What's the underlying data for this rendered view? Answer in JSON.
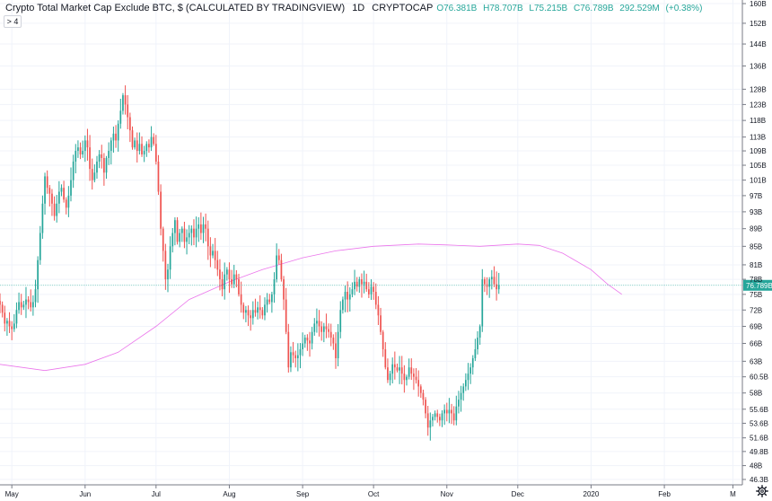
{
  "legend": {
    "title": "Crypto Total Market Cap Exclude BTC, $ (CALCULATED BY TRADINGVIEW)",
    "interval": "1D",
    "source": "CRYPTOCAP",
    "open": "O76.381B",
    "high": "H78.707B",
    "low": "L75.215B",
    "close": "C76.789B",
    "volume": "292.529M",
    "change": "(+0.38%)"
  },
  "collapse_label": "> 4",
  "colors": {
    "up": "#26a69a",
    "down": "#ef5350",
    "ma": "#e85ee8",
    "price_line": "#26a69a",
    "grid": "#f0f3fa",
    "axis_text": "#131722"
  },
  "chart_data": {
    "type": "candlestick",
    "title": "Crypto Total Market Cap Exclude BTC, $ (CALCULATED BY TRADINGVIEW)",
    "xlabel": "",
    "ylabel": "",
    "x_ticks": [
      "May",
      "Jun",
      "Jul",
      "Aug",
      "Sep",
      "Oct",
      "Nov",
      "Dec",
      "2020",
      "Feb",
      "M"
    ],
    "y_ticks": [
      "160B",
      "152B",
      "144B",
      "136B",
      "128B",
      "123B",
      "118B",
      "113B",
      "109B",
      "105B",
      "101B",
      "97B",
      "93B",
      "89B",
      "85B",
      "81B",
      "78B",
      "75B",
      "72B",
      "69B",
      "66B",
      "63B",
      "60.5B",
      "58B",
      "55.6B",
      "53.6B",
      "51.6B",
      "49.8B",
      "48B",
      "46.3B"
    ],
    "y_scale": "log",
    "last_price_label": "76.789B",
    "last_price": 76.789,
    "x_range": [
      "2019-04-26",
      "2020-03-05"
    ],
    "grid": true,
    "series": [
      {
        "kind": "ohlc",
        "start": "2019-04-26",
        "close": [
          73.0,
          71.5,
          69.5,
          70.0,
          69.0,
          68.5,
          69.5,
          72.0,
          73.5,
          72.5,
          73.0,
          74.0,
          73.5,
          72.5,
          73.5,
          76.0,
          82.0,
          88.0,
          95.0,
          102.0,
          99.0,
          97.5,
          95.0,
          92.0,
          95.0,
          98.0,
          99.0,
          96.0,
          94.0,
          97.0,
          101.0,
          106.0,
          109.0,
          110.0,
          108.0,
          109.0,
          112.0,
          110.0,
          104.0,
          101.0,
          103.0,
          106.0,
          108.0,
          107.0,
          103.0,
          107.0,
          109.0,
          112.0,
          114.0,
          112.0,
          117.0,
          121.0,
          126.0,
          123.0,
          119.0,
          115.0,
          110.0,
          112.0,
          109.0,
          111.0,
          108.0,
          109.0,
          111.0,
          110.0,
          113.0,
          111.0,
          106.0,
          98.0,
          89.0,
          84.0,
          78.0,
          80.0,
          85.0,
          88.0,
          91.0,
          86.0,
          88.0,
          89.0,
          86.0,
          87.0,
          88.0,
          89.0,
          87.0,
          89.0,
          90.0,
          88.0,
          90.0,
          89.0,
          85.0,
          83.0,
          84.0,
          82.0,
          80.0,
          78.0,
          76.0,
          79.0,
          80.0,
          78.0,
          77.0,
          79.0,
          78.0,
          75.0,
          73.0,
          71.5,
          72.0,
          71.0,
          70.5,
          72.0,
          71.5,
          72.5,
          72.0,
          71.0,
          73.0,
          74.0,
          73.5,
          75.0,
          78.0,
          83.0,
          82.0,
          78.0,
          74.0,
          68.0,
          62.0,
          64.5,
          64.0,
          63.5,
          64.0,
          65.0,
          66.0,
          67.0,
          66.5,
          66.0,
          68.0,
          69.5,
          70.0,
          69.0,
          68.0,
          69.0,
          68.5,
          68.0,
          67.0,
          66.0,
          63.5,
          68.0,
          72.0,
          74.0,
          75.5,
          74.0,
          75.0,
          76.0,
          77.5,
          76.5,
          78.0,
          77.0,
          77.5,
          76.0,
          75.0,
          76.5,
          75.5,
          73.0,
          71.0,
          68.0,
          65.0,
          62.0,
          60.0,
          61.0,
          62.5,
          62.0,
          61.5,
          62.0,
          61.0,
          60.0,
          60.5,
          62.0,
          61.0,
          60.5,
          60.0,
          59.0,
          58.0,
          57.0,
          55.0,
          53.0,
          54.0,
          54.5,
          55.0,
          54.5,
          54.0,
          55.0,
          55.5,
          55.0,
          55.5,
          55.0,
          54.0,
          56.0,
          57.0,
          58.0,
          59.0,
          60.0,
          61.0,
          62.0,
          63.5,
          65.0,
          67.0,
          69.0,
          78.0,
          77.0,
          76.5,
          78.0,
          78.5,
          77.0,
          76.0,
          76.789
        ]
      },
      {
        "kind": "moving_average",
        "points": [
          [
            "2019-04-26",
            62.5
          ],
          [
            "2019-05-15",
            61.5
          ],
          [
            "2019-06-01",
            62.5
          ],
          [
            "2019-06-15",
            64.5
          ],
          [
            "2019-07-01",
            69.0
          ],
          [
            "2019-07-15",
            74.0
          ],
          [
            "2019-08-01",
            77.5
          ],
          [
            "2019-08-15",
            80.0
          ],
          [
            "2019-09-01",
            82.5
          ],
          [
            "2019-09-15",
            84.0
          ],
          [
            "2019-10-01",
            85.0
          ],
          [
            "2019-10-20",
            85.5
          ],
          [
            "2019-11-01",
            85.3
          ],
          [
            "2019-11-15",
            85.0
          ],
          [
            "2019-12-01",
            85.5
          ],
          [
            "2019-12-10",
            85.2
          ],
          [
            "2019-12-20",
            83.5
          ],
          [
            "2020-01-01",
            80.0
          ],
          [
            "2020-01-08",
            77.0
          ],
          [
            "2020-01-14",
            75.0
          ]
        ]
      }
    ]
  }
}
